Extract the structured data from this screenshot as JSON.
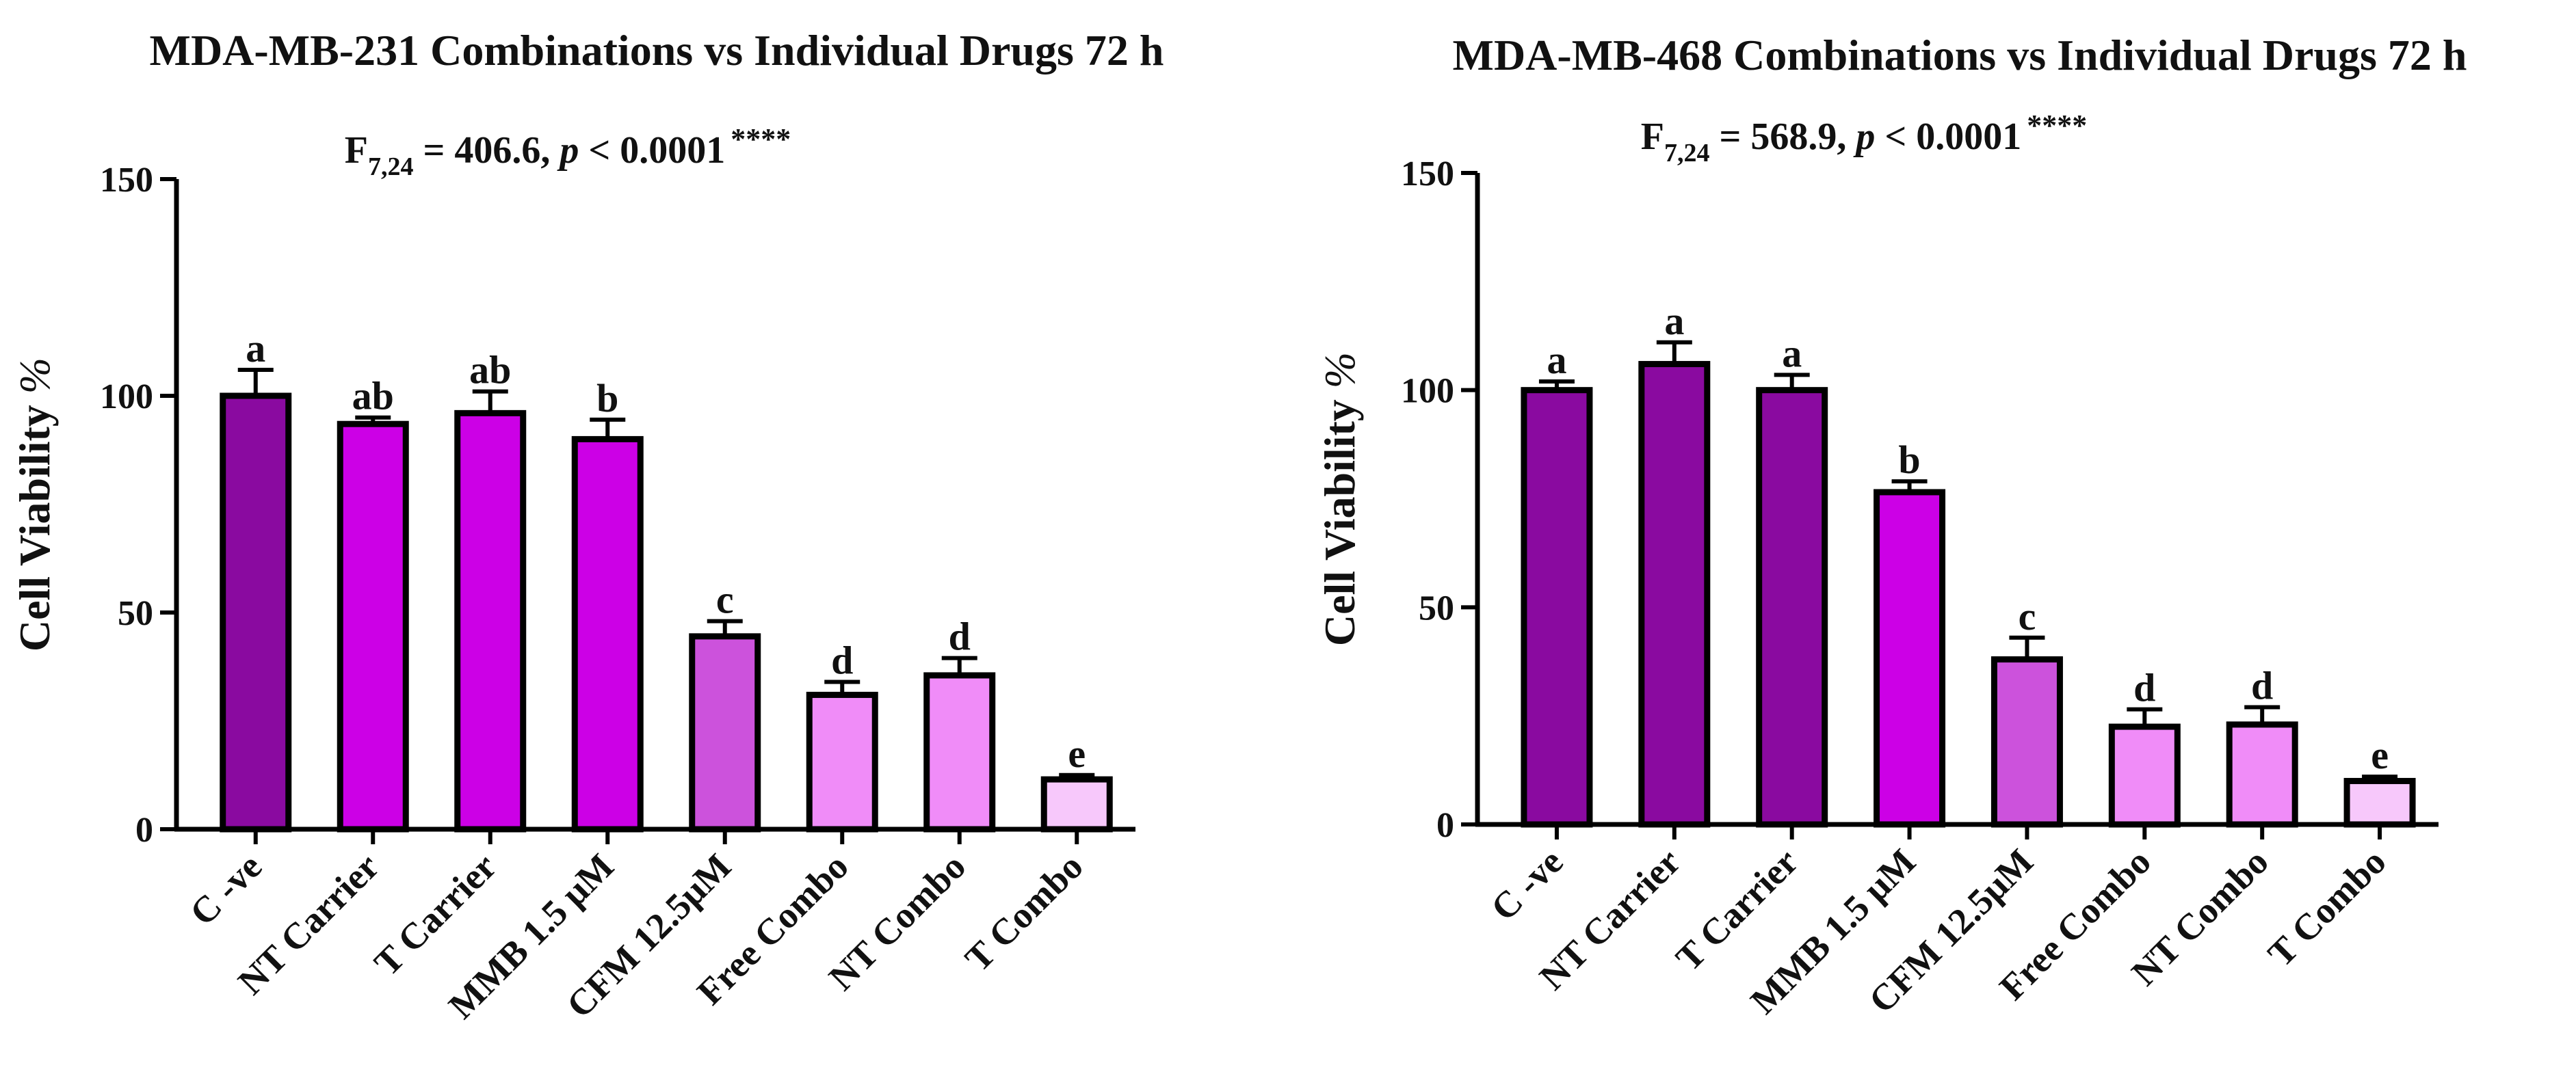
{
  "chart_data": [
    {
      "type": "bar",
      "title": "MDA-MB-231 Combinations vs Individual Drugs 72 h",
      "stat": {
        "f": "F",
        "df": "7,24",
        "value": " = 406.6, ",
        "p": "p",
        "rest": " < 0.0001",
        "stars": "****"
      },
      "ylabel": "Cell Viability %",
      "ylim": [
        0,
        150
      ],
      "yticks": [
        0,
        50,
        100,
        150
      ],
      "categories": [
        "C -ve",
        "NT Carrier",
        "T Carrier",
        "MMB 1.5 μM",
        "CFM 12.5μM",
        "Free Combo",
        "NT Combo",
        "T Combo"
      ],
      "values": [
        100,
        93.5,
        96,
        90,
        44.5,
        31,
        35.5,
        11.5
      ],
      "errors": [
        6,
        1.5,
        5,
        4.5,
        3.5,
        3,
        4,
        1
      ],
      "letters": [
        "a",
        "ab",
        "ab",
        "b",
        "c",
        "d",
        "d",
        "e"
      ],
      "colors": [
        "#8a0aa0",
        "#cc00e6",
        "#cc00e6",
        "#cc00e6",
        "#cc52dc",
        "#f08cf8",
        "#f08cf8",
        "#f7c8fb"
      ]
    },
    {
      "type": "bar",
      "title": "MDA-MB-468 Combinations vs Individual Drugs 72 h",
      "stat": {
        "f": "F",
        "df": "7,24",
        "value": " = 568.9, ",
        "p": "p",
        "rest": " < 0.0001",
        "stars": "****"
      },
      "ylabel": "Cell Viability %",
      "ylim": [
        0,
        150
      ],
      "yticks": [
        0,
        50,
        100,
        150
      ],
      "categories": [
        "C -ve",
        "NT Carrier",
        "T Carrier",
        "MMB 1.5 μM",
        "CFM 12.5μM",
        "Free Combo",
        "NT Combo",
        "T Combo"
      ],
      "values": [
        100,
        106,
        100,
        76.5,
        38,
        22.5,
        23,
        10
      ],
      "errors": [
        2,
        5,
        3.5,
        2.5,
        5,
        4,
        4,
        1
      ],
      "letters": [
        "a",
        "a",
        "a",
        "b",
        "c",
        "d",
        "d",
        "e"
      ],
      "colors": [
        "#8a0aa0",
        "#8a0aa0",
        "#8a0aa0",
        "#cc00e6",
        "#cc52dc",
        "#f08cf8",
        "#f08cf8",
        "#f7c8fb"
      ]
    }
  ]
}
